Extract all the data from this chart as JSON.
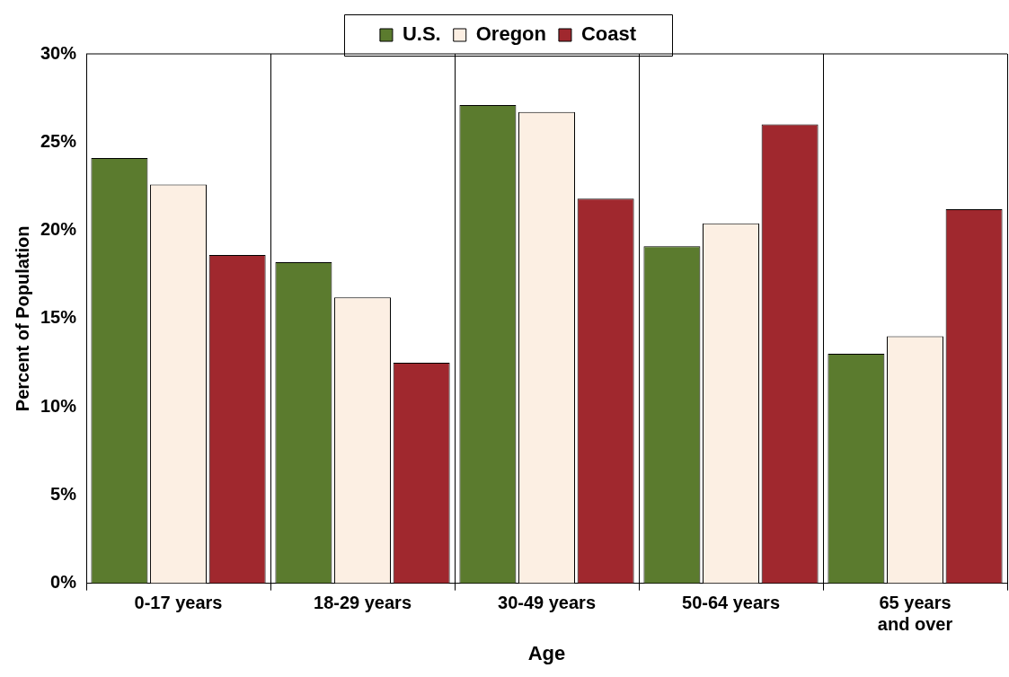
{
  "chart_data": {
    "type": "bar",
    "xlabel": "Age",
    "ylabel": "Percent of Population",
    "categories": [
      "0-17 years",
      "18-29 years",
      "30-49 years",
      "50-64 years",
      "65 years and over"
    ],
    "series": [
      {
        "name": "U.S.",
        "color": "#5b7b2e",
        "values": [
          24.1,
          18.2,
          27.1,
          19.1,
          13.0
        ]
      },
      {
        "name": "Oregon",
        "color": "#fcefe3",
        "values": [
          22.6,
          16.2,
          26.7,
          20.4,
          14.0
        ]
      },
      {
        "name": "Coast",
        "color": "#a0282e",
        "values": [
          18.6,
          12.5,
          21.8,
          26.0,
          21.2
        ]
      }
    ],
    "ylim": [
      0,
      30
    ],
    "yticks": [
      {
        "value": 0,
        "label": "0%"
      },
      {
        "value": 5,
        "label": "5%"
      },
      {
        "value": 10,
        "label": "10%"
      },
      {
        "value": 15,
        "label": "15%"
      },
      {
        "value": 20,
        "label": "20%"
      },
      {
        "value": 25,
        "label": "25%"
      },
      {
        "value": 30,
        "label": "30%"
      }
    ],
    "grid": "x",
    "legend": "top"
  }
}
